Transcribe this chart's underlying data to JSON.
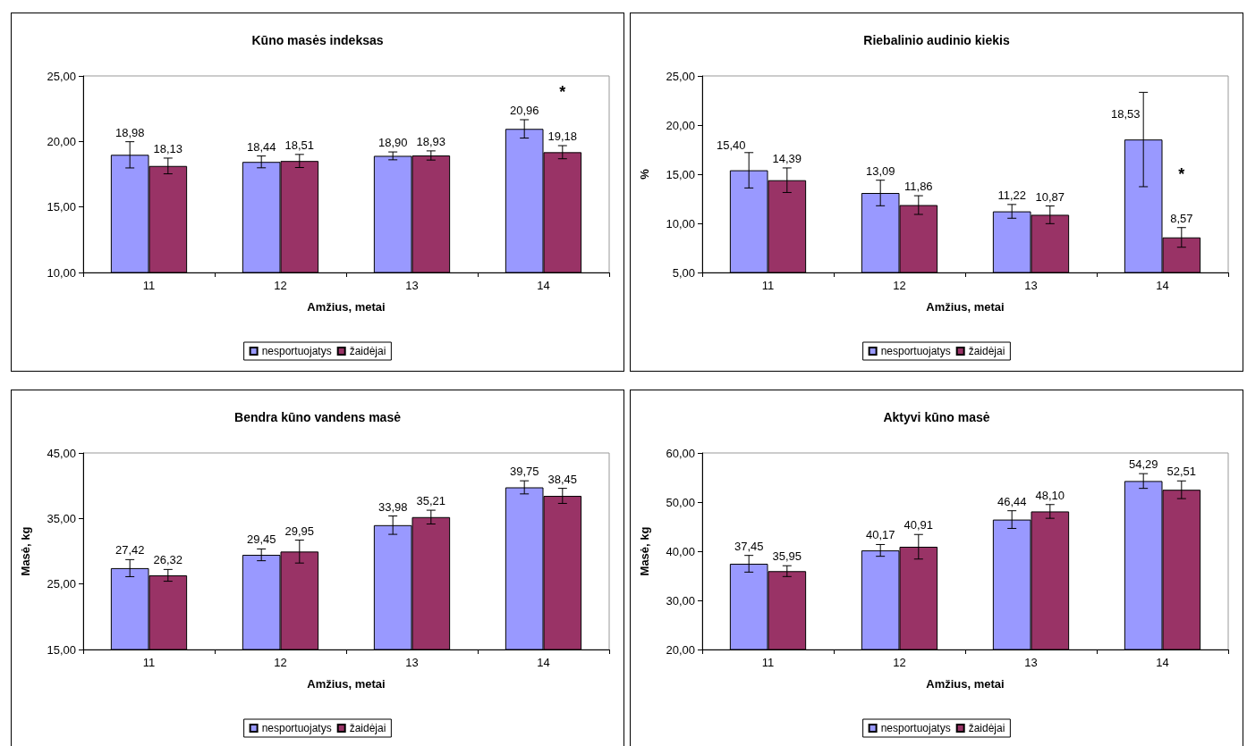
{
  "chart_data": [
    {
      "type": "bar",
      "title": "Kūno masės indeksas",
      "xlabel": "Amžius, metai",
      "categories": [
        "11",
        "12",
        "13",
        "14"
      ],
      "ylim": [
        10,
        25
      ],
      "yticks": [
        {
          "value": 10,
          "label": "10,00"
        },
        {
          "value": 15,
          "label": "15,00"
        },
        {
          "value": 20,
          "label": "20,00"
        },
        {
          "value": 25,
          "label": "25,00"
        }
      ],
      "legend": "bottom",
      "annotations": [
        "*"
      ],
      "series": [
        {
          "name": "nesportuojatys",
          "color": "#9999ff",
          "values": [
            18.98,
            18.44,
            18.9,
            20.96
          ],
          "errors": [
            1.0,
            0.45,
            0.3,
            0.7
          ],
          "value_labels": [
            "18,98",
            "18,44",
            "18,90",
            "20,96"
          ]
        },
        {
          "name": "žaidėjai",
          "color": "#993366",
          "values": [
            18.13,
            18.51,
            18.93,
            19.18
          ],
          "errors": [
            0.6,
            0.5,
            0.35,
            0.5
          ],
          "value_labels": [
            "18,13",
            "18,51",
            "18,93",
            "19,18"
          ]
        }
      ]
    },
    {
      "type": "bar",
      "title": "Riebalinio audinio kiekis",
      "xlabel": "Amžius, metai",
      "ylabel": "%",
      "categories": [
        "11",
        "12",
        "13",
        "14"
      ],
      "ylim": [
        5,
        25
      ],
      "yticks": [
        {
          "value": 5,
          "label": "5,00"
        },
        {
          "value": 10,
          "label": "10,00"
        },
        {
          "value": 15,
          "label": "15,00"
        },
        {
          "value": 20,
          "label": "20,00"
        },
        {
          "value": 25,
          "label": "25,00"
        }
      ],
      "legend": "bottom",
      "annotations": [
        "*"
      ],
      "series": [
        {
          "name": "nesportuojatys",
          "color": "#9999ff",
          "values": [
            15.4,
            13.09,
            11.22,
            18.53
          ],
          "errors": [
            1.8,
            1.3,
            0.7,
            4.8
          ],
          "value_labels": [
            "15,40",
            "13,09",
            "11,22",
            "18,53"
          ]
        },
        {
          "name": "žaidėjai",
          "color": "#993366",
          "values": [
            14.39,
            11.86,
            10.87,
            8.57
          ],
          "errors": [
            1.25,
            0.95,
            0.9,
            1.0
          ],
          "value_labels": [
            "14,39",
            "11,86",
            "10,87",
            "8,57"
          ]
        }
      ]
    },
    {
      "type": "bar",
      "title": "Bendra kūno vandens masė",
      "xlabel": "Amžius, metai",
      "ylabel": "Masė, kg",
      "categories": [
        "11",
        "12",
        "13",
        "14"
      ],
      "ylim": [
        15,
        45
      ],
      "yticks": [
        {
          "value": 15,
          "label": "15,00"
        },
        {
          "value": 25,
          "label": "25,00"
        },
        {
          "value": 35,
          "label": "35,00"
        },
        {
          "value": 45,
          "label": "45,00"
        }
      ],
      "legend": "bottom",
      "series": [
        {
          "name": "nesportuojatys",
          "color": "#9999ff",
          "values": [
            27.42,
            29.45,
            33.98,
            39.75
          ],
          "errors": [
            1.3,
            0.9,
            1.4,
            1.0
          ],
          "value_labels": [
            "27,42",
            "29,45",
            "33,98",
            "39,75"
          ]
        },
        {
          "name": "žaidėjai",
          "color": "#993366",
          "values": [
            26.32,
            29.95,
            35.21,
            38.45
          ],
          "errors": [
            0.9,
            1.75,
            1.05,
            1.15
          ],
          "value_labels": [
            "26,32",
            "29,95",
            "35,21",
            "38,45"
          ]
        }
      ]
    },
    {
      "type": "bar",
      "title": "Aktyvi kūno masė",
      "xlabel": "Amžius, metai",
      "ylabel": "Masė, kg",
      "categories": [
        "11",
        "12",
        "13",
        "14"
      ],
      "ylim": [
        20,
        60
      ],
      "yticks": [
        {
          "value": 20,
          "label": "20,00"
        },
        {
          "value": 30,
          "label": "30,00"
        },
        {
          "value": 40,
          "label": "40,00"
        },
        {
          "value": 50,
          "label": "50,00"
        },
        {
          "value": 60,
          "label": "60,00"
        }
      ],
      "legend": "bottom",
      "series": [
        {
          "name": "nesportuojatys",
          "color": "#9999ff",
          "values": [
            37.45,
            40.17,
            46.44,
            54.29
          ],
          "errors": [
            1.7,
            1.2,
            1.8,
            1.5
          ],
          "value_labels": [
            "37,45",
            "40,17",
            "46,44",
            "54,29"
          ]
        },
        {
          "name": "žaidėjai",
          "color": "#993366",
          "values": [
            35.95,
            40.91,
            48.1,
            52.51
          ],
          "errors": [
            1.1,
            2.5,
            1.4,
            1.8
          ],
          "value_labels": [
            "35,95",
            "40,91",
            "48,10",
            "52,51"
          ]
        }
      ]
    }
  ]
}
